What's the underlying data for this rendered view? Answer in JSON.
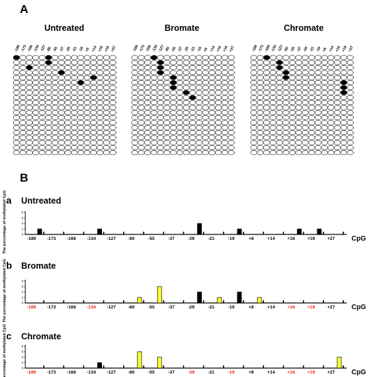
{
  "panel_labels": {
    "A": "A",
    "B": "B"
  },
  "cpg_sites": [
    "-189",
    "-173",
    "-166",
    "-134",
    "-127",
    "-80",
    "-55",
    "-37",
    "-29",
    "-21",
    "-19",
    "+8",
    "+14",
    "+16",
    "+19",
    "+27"
  ],
  "groups": [
    {
      "title": "Untreated",
      "rows": 20,
      "methylated": [
        {
          "row": 1,
          "col": 1
        },
        {
          "row": 1,
          "col": 6
        },
        {
          "row": 2,
          "col": 6
        },
        {
          "row": 3,
          "col": 3
        },
        {
          "row": 4,
          "col": 8
        },
        {
          "row": 5,
          "col": 13
        },
        {
          "row": 6,
          "col": 11
        }
      ]
    },
    {
      "title": "Bromate",
      "rows": 20,
      "methylated": [
        {
          "row": 1,
          "col": 4
        },
        {
          "row": 2,
          "col": 5
        },
        {
          "row": 3,
          "col": 5
        },
        {
          "row": 4,
          "col": 5
        },
        {
          "row": 5,
          "col": 7
        },
        {
          "row": 6,
          "col": 7
        },
        {
          "row": 7,
          "col": 7
        },
        {
          "row": 8,
          "col": 9
        },
        {
          "row": 9,
          "col": 10
        }
      ]
    },
    {
      "title": "Chromate",
      "rows": 20,
      "methylated": [
        {
          "row": 1,
          "col": 3
        },
        {
          "row": 2,
          "col": 5
        },
        {
          "row": 3,
          "col": 5
        },
        {
          "row": 4,
          "col": 6
        },
        {
          "row": 5,
          "col": 6
        },
        {
          "row": 6,
          "col": 15
        },
        {
          "row": 7,
          "col": 15
        },
        {
          "row": 8,
          "col": 15
        }
      ]
    }
  ],
  "chart_data": [
    {
      "type": "bar",
      "panel": "a",
      "title": "Untreated",
      "ylabel": "The percentage of methylated CpG",
      "xlabel": "CpG",
      "yticks": [
        "0",
        "2",
        "4",
        "6",
        "8"
      ],
      "ylim": [
        0,
        8
      ],
      "categories": [
        "-189",
        "-173",
        "-166",
        "-134",
        "-127",
        "-80",
        "-55",
        "-37",
        "-29",
        "-21",
        "-19",
        "+8",
        "+14",
        "+16",
        "+19",
        "+27"
      ],
      "highlight_labels": [],
      "values": [
        2,
        0,
        0,
        2,
        0,
        0,
        0,
        0,
        4,
        0,
        2,
        0,
        0,
        2,
        2,
        0
      ],
      "colors": [
        "black",
        "black",
        "black",
        "black",
        "black",
        "black",
        "black",
        "black",
        "black",
        "black",
        "black",
        "black",
        "black",
        "black",
        "black",
        "black"
      ]
    },
    {
      "type": "bar",
      "panel": "b",
      "title": "Bromate",
      "ylabel": "The percentage of methylated CpG",
      "xlabel": "CpG",
      "yticks": [
        "0",
        "2",
        "4",
        "6",
        "8"
      ],
      "ylim": [
        0,
        8
      ],
      "categories": [
        "-189",
        "-173",
        "-166",
        "-134",
        "-127",
        "-80",
        "-55",
        "-37",
        "-29",
        "-21",
        "-19",
        "+8",
        "+14",
        "+16",
        "+19",
        "+27"
      ],
      "highlight_labels": [
        "-189",
        "-134",
        "+16",
        "+19"
      ],
      "values": [
        0,
        0,
        0,
        0,
        0,
        2,
        6,
        0,
        4,
        2,
        4,
        2,
        0,
        0,
        0,
        0
      ],
      "colors": [
        "black",
        "black",
        "black",
        "black",
        "black",
        "yellow",
        "yellow",
        "black",
        "black",
        "yellow",
        "black",
        "yellow",
        "black",
        "black",
        "black",
        "black"
      ]
    },
    {
      "type": "bar",
      "panel": "c",
      "title": "Chromate",
      "ylabel": "The percentage of methylated CpG",
      "xlabel": "CpG",
      "yticks": [
        "0",
        "2",
        "4",
        "6",
        "8"
      ],
      "ylim": [
        0,
        8
      ],
      "categories": [
        "-189",
        "-173",
        "-166",
        "-134",
        "-127",
        "-80",
        "-55",
        "-37",
        "-29",
        "-21",
        "-19",
        "+8",
        "+14",
        "+16",
        "+19",
        "+27"
      ],
      "highlight_labels": [
        "-189",
        "-29",
        "-19",
        "+16",
        "+19"
      ],
      "values": [
        0,
        0,
        0,
        2,
        0,
        6,
        4,
        0,
        0,
        0,
        0,
        0,
        0,
        0,
        0,
        4
      ],
      "colors": [
        "black",
        "black",
        "black",
        "black",
        "black",
        "yellow",
        "yellow",
        "black",
        "black",
        "black",
        "black",
        "black",
        "black",
        "black",
        "black",
        "yellow"
      ]
    }
  ],
  "colors": {
    "black_bar": "#000000",
    "yellow_bar": "#ffff33",
    "highlight_label": "#e8261c",
    "circle_stroke": "#222222"
  }
}
